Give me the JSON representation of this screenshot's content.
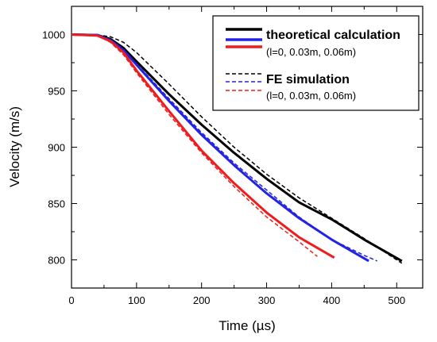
{
  "chart_data": {
    "type": "line",
    "title": "",
    "xlabel": "Time (µs)",
    "ylabel": "Velocity (m/s)",
    "xlim": [
      0,
      540
    ],
    "ylim": [
      775,
      1025
    ],
    "xticks": [
      0,
      100,
      200,
      300,
      400,
      500
    ],
    "yticks": [
      800,
      850,
      900,
      950,
      1000
    ],
    "grid": false,
    "legend": {
      "placement": "top-right",
      "groups": [
        {
          "title": "theoretical calculation",
          "subtitle": "(l=0, 0.03m, 0.06m)",
          "style": "solid"
        },
        {
          "title": "FE simulation",
          "subtitle": "(l=0, 0.03m, 0.06m)",
          "style": "dashed"
        }
      ]
    },
    "series": [
      {
        "style": "solid",
        "color": "#000000",
        "points": [
          [
            0,
            1000
          ],
          [
            40,
            999.5
          ],
          [
            60,
            996
          ],
          [
            80,
            988
          ],
          [
            100,
            976
          ],
          [
            150,
            947
          ],
          [
            200,
            920
          ],
          [
            250,
            895
          ],
          [
            300,
            872
          ],
          [
            350,
            851
          ],
          [
            400,
            836
          ],
          [
            450,
            818
          ],
          [
            508,
            799
          ]
        ]
      },
      {
        "style": "solid",
        "color": "#2323e6",
        "points": [
          [
            0,
            1000
          ],
          [
            40,
            999.5
          ],
          [
            60,
            995
          ],
          [
            80,
            986
          ],
          [
            100,
            973
          ],
          [
            150,
            941
          ],
          [
            200,
            911
          ],
          [
            250,
            884
          ],
          [
            300,
            859
          ],
          [
            350,
            837
          ],
          [
            400,
            818
          ],
          [
            457,
            799
          ]
        ]
      },
      {
        "style": "solid",
        "color": "#ee1c1c",
        "points": [
          [
            0,
            1000
          ],
          [
            40,
            999
          ],
          [
            60,
            994
          ],
          [
            80,
            984
          ],
          [
            100,
            968
          ],
          [
            150,
            932
          ],
          [
            200,
            897
          ],
          [
            250,
            868
          ],
          [
            300,
            842
          ],
          [
            350,
            820
          ],
          [
            404,
            802
          ]
        ]
      },
      {
        "style": "dashed",
        "color": "#000000",
        "points": [
          [
            0,
            1000
          ],
          [
            40,
            999.5
          ],
          [
            60,
            998
          ],
          [
            80,
            993
          ],
          [
            100,
            984
          ],
          [
            150,
            956
          ],
          [
            200,
            927
          ],
          [
            250,
            900
          ],
          [
            300,
            876
          ],
          [
            350,
            855
          ],
          [
            400,
            837
          ],
          [
            450,
            819
          ],
          [
            508,
            797
          ]
        ]
      },
      {
        "style": "dashed",
        "color": "#2323e6",
        "points": [
          [
            0,
            1000
          ],
          [
            40,
            999.5
          ],
          [
            60,
            996
          ],
          [
            80,
            987
          ],
          [
            100,
            974
          ],
          [
            150,
            943
          ],
          [
            200,
            913
          ],
          [
            250,
            886
          ],
          [
            300,
            862
          ],
          [
            350,
            838
          ],
          [
            400,
            818
          ],
          [
            450,
            804
          ],
          [
            470,
            799
          ]
        ]
      },
      {
        "style": "dashed",
        "color": "#ee1c1c",
        "points": [
          [
            0,
            1000
          ],
          [
            40,
            999
          ],
          [
            60,
            993
          ],
          [
            80,
            982
          ],
          [
            100,
            966
          ],
          [
            150,
            929
          ],
          [
            200,
            895
          ],
          [
            250,
            865
          ],
          [
            300,
            838
          ],
          [
            350,
            816
          ],
          [
            378,
            803
          ]
        ]
      }
    ]
  }
}
